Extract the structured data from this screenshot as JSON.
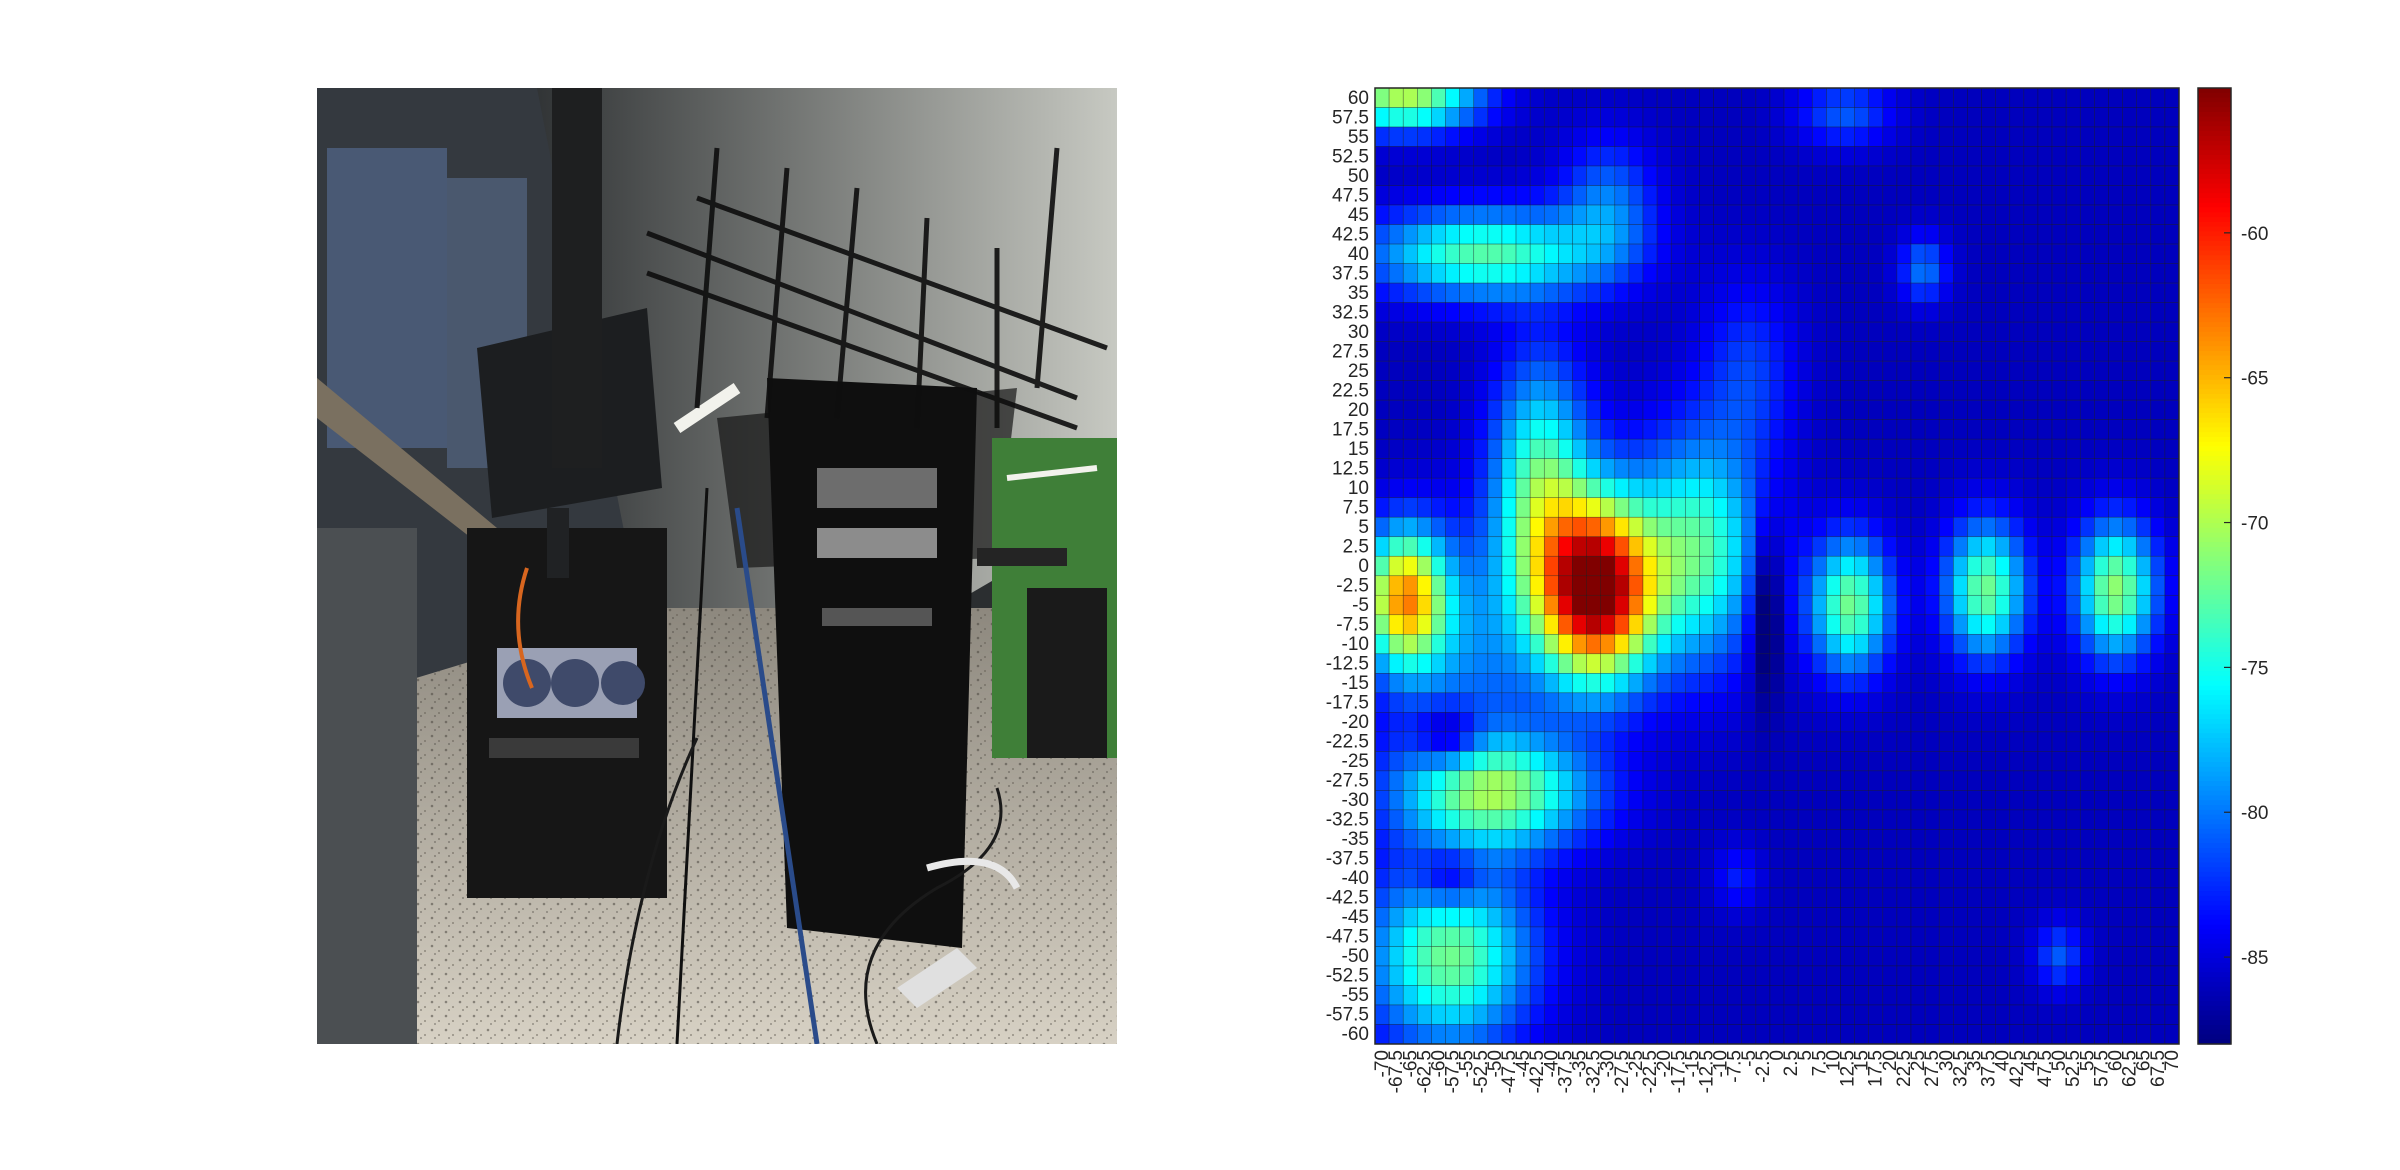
{
  "photo": {
    "icon": "server-room-photo",
    "colors": {
      "wall": "#3a4046",
      "ceiling": "#b9bcb4",
      "floor": "#cfc9bd",
      "rack": "#121212",
      "accent_wall": "#3f7f38",
      "window": "#5a6e8e"
    }
  },
  "chart_data": {
    "type": "heatmap",
    "title": "",
    "xlabel": "",
    "ylabel": "",
    "x": [
      -70,
      -67.5,
      -65,
      -62.5,
      -60,
      -57.5,
      -55,
      -52.5,
      -50,
      -47.5,
      -45,
      -42.5,
      -40,
      -37.5,
      -35,
      -32.5,
      -30,
      -27.5,
      -25,
      -22.5,
      -20,
      -17.5,
      -15,
      -12.5,
      -10,
      -7.5,
      -5,
      -2.5,
      0,
      2.5,
      5,
      7.5,
      10,
      12.5,
      15,
      17.5,
      20,
      22.5,
      25,
      27.5,
      30,
      32.5,
      35,
      37.5,
      40,
      42.5,
      45,
      47.5,
      50,
      52.5,
      55,
      57.5,
      60,
      62.5,
      65,
      67.5,
      70
    ],
    "x_tick_labels": [
      "-70",
      "-67.5",
      "-65",
      "-62.5",
      "-60",
      "-57.5",
      "-55",
      "-52.5",
      "-50",
      "-47.5",
      "-45",
      "-42.5",
      "-40",
      "-37.5",
      "-35",
      "-32.5",
      "-30",
      "-27.5",
      "-25",
      "-22.5",
      "-20",
      "-17.5",
      "-15",
      "-12.5",
      "-10",
      "-7.5",
      "-5",
      "-2.5",
      "0",
      "2.5",
      "5",
      "7.5",
      "10",
      "12.5",
      "15",
      "17.5",
      "20",
      "22.5",
      "25",
      "27.5",
      "30",
      "32.5",
      "35",
      "37.5",
      "40",
      "42.5",
      "45",
      "47.5",
      "50",
      "52.5",
      "55",
      "57.5",
      "60",
      "62.5",
      "65",
      "67.5",
      "70"
    ],
    "y": [
      60,
      57.5,
      55,
      52.5,
      50,
      47.5,
      45,
      42.5,
      40,
      37.5,
      35,
      32.5,
      30,
      27.5,
      25,
      22.5,
      20,
      17.5,
      15,
      12.5,
      10,
      7.5,
      5,
      2.5,
      0,
      -2.5,
      -5,
      -7.5,
      -10,
      -12.5,
      -15,
      -17.5,
      -20,
      -22.5,
      -25,
      -27.5,
      -30,
      -32.5,
      -35,
      -37.5,
      -40,
      -42.5,
      -45,
      -47.5,
      -50,
      -52.5,
      -55,
      -57.5,
      -60
    ],
    "y_tick_labels": [
      "60",
      "57.5",
      "55",
      "52.5",
      "50",
      "47.5",
      "45",
      "42.5",
      "40",
      "37.5",
      "35",
      "32.5",
      "30",
      "27.5",
      "25",
      "22.5",
      "20",
      "17.5",
      "15",
      "12.5",
      "10",
      "7.5",
      "5",
      "2.5",
      "0",
      "-2.5",
      "-5",
      "-7.5",
      "-10",
      "-12.5",
      "-15",
      "-17.5",
      "-20",
      "-22.5",
      "-25",
      "-27.5",
      "-30",
      "-32.5",
      "-35",
      "-37.5",
      "-40",
      "-42.5",
      "-45",
      "-47.5",
      "-50",
      "-52.5",
      "-55",
      "-57.5",
      "-60"
    ],
    "value_range": [
      -88,
      -55
    ],
    "colorbar_ticks": [
      -60,
      -65,
      -70,
      -75,
      -80,
      -85
    ],
    "colorbar_tick_labels": [
      "-60",
      "-65",
      "-70",
      "-75",
      "-80",
      "-85"
    ],
    "colormap": "jet",
    "grid": true,
    "legend": "colorbar-right",
    "value_blobs": [
      {
        "x": -32,
        "y": -3,
        "sx": 7,
        "sy": 8,
        "amp": 32
      },
      {
        "x": -42,
        "y": 10,
        "sx": 6,
        "sy": 11,
        "amp": 13
      },
      {
        "x": -14,
        "y": 2,
        "sx": 8,
        "sy": 10,
        "amp": 13
      },
      {
        "x": -66,
        "y": -4,
        "sx": 5,
        "sy": 6,
        "amp": 20
      },
      {
        "x": -52,
        "y": 40,
        "sx": 14,
        "sy": 4,
        "amp": 13
      },
      {
        "x": -66,
        "y": 60,
        "sx": 9,
        "sy": 3,
        "amp": 16
      },
      {
        "x": -30,
        "y": 46,
        "sx": 6,
        "sy": 6,
        "amp": 6
      },
      {
        "x": -50,
        "y": -29,
        "sx": 12,
        "sy": 5,
        "amp": 15
      },
      {
        "x": -58,
        "y": -50,
        "sx": 10,
        "sy": 8,
        "amp": 14
      },
      {
        "x": -56,
        "y": -10,
        "sx": 10,
        "sy": 10,
        "amp": 6
      },
      {
        "x": 13,
        "y": -5,
        "sx": 5,
        "sy": 6,
        "amp": 14
      },
      {
        "x": 37,
        "y": -3,
        "sx": 5,
        "sy": 6,
        "amp": 14
      },
      {
        "x": 60,
        "y": -3,
        "sx": 5,
        "sy": 6,
        "amp": 15
      },
      {
        "x": 26,
        "y": 38,
        "sx": 3,
        "sy": 3,
        "amp": 6
      },
      {
        "x": 12,
        "y": 58,
        "sx": 6,
        "sy": 3,
        "amp": 5
      },
      {
        "x": -5,
        "y": 25,
        "sx": 6,
        "sy": 8,
        "amp": 4
      },
      {
        "x": 50,
        "y": -50,
        "sx": 3,
        "sy": 3,
        "amp": 5
      },
      {
        "x": -7,
        "y": -40,
        "sx": 3,
        "sy": 3,
        "amp": 3
      }
    ],
    "value_dips": [
      {
        "x": -58,
        "y": -22,
        "sx": 4,
        "sy": 3,
        "amp": 6
      },
      {
        "x": -58,
        "y": -40,
        "sx": 4,
        "sy": 3,
        "amp": 5
      },
      {
        "x": -2,
        "y": -5,
        "sx": 2,
        "sy": 8,
        "amp": 6
      }
    ]
  }
}
